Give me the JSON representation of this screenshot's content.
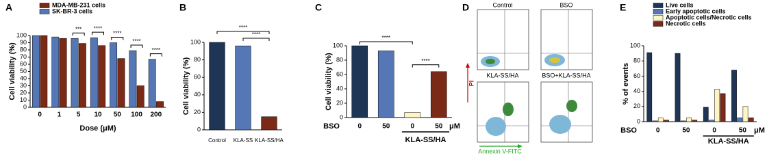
{
  "chart_data": [
    {
      "panel": "A",
      "type": "bar",
      "ylabel": "Cell viability (%)",
      "xlabel": "Dose (μM)",
      "categories": [
        "0",
        "1",
        "5",
        "10",
        "50",
        "100",
        "200"
      ],
      "series": [
        {
          "name": "MDA-MB-231 cells",
          "color": "#7b2a17",
          "values": [
            100,
            96,
            89,
            86,
            68,
            30,
            8
          ]
        },
        {
          "name": "SK-BR-3 cells",
          "color": "#5577b5",
          "values": [
            100,
            98,
            96,
            97,
            90,
            79,
            67
          ]
        }
      ],
      "ylim": [
        0,
        100
      ],
      "yticks": [
        0,
        10,
        20,
        30,
        40,
        50,
        60,
        70,
        80,
        90,
        100
      ],
      "significance": [
        null,
        null,
        "***",
        "****",
        "****",
        "****",
        "****"
      ]
    },
    {
      "panel": "B",
      "type": "bar",
      "ylabel": "Cell viability (%)",
      "categories": [
        "Control",
        "KLA-SS",
        "KLA-SS/HA"
      ],
      "values": [
        100,
        96,
        15
      ],
      "colors": [
        "#1f3555",
        "#5577b5",
        "#7b2a17"
      ],
      "ylim": [
        0,
        100
      ],
      "yticks": [
        0,
        20,
        40,
        60,
        80,
        100
      ],
      "comparisons": [
        "****",
        "****"
      ]
    },
    {
      "panel": "C",
      "type": "bar",
      "ylabel": "Cell viability (%)",
      "categories": [
        "0",
        "50",
        "0",
        "50"
      ],
      "values": [
        100,
        93,
        7,
        64
      ],
      "colors": [
        "#1f3555",
        "#5577b5",
        "#fff5c0",
        "#7b2a17"
      ],
      "group_label": "BSO",
      "unit": "μM",
      "bracket_label": "KLA-SS/HA",
      "ylim": [
        0,
        100
      ],
      "yticks": [
        0,
        20,
        40,
        60,
        80,
        100
      ],
      "comparisons": [
        "****",
        "****"
      ]
    },
    {
      "panel": "E",
      "type": "bar",
      "ylabel": "% of events",
      "categories": [
        "0",
        "50",
        "0",
        "50"
      ],
      "series": [
        {
          "name": "Live cells",
          "color": "#1f3555",
          "values": [
            91,
            90,
            19,
            68
          ]
        },
        {
          "name": "Early apoptotic cells",
          "color": "#5577b5",
          "values": [
            1,
            1,
            2,
            5
          ]
        },
        {
          "name": "Apoptotic cells/Necrotic cells",
          "color": "#fff5c0",
          "values": [
            5,
            5,
            43,
            20
          ]
        },
        {
          "name": "Necrotic cells",
          "color": "#7b2a17",
          "values": [
            2,
            2,
            37,
            5
          ]
        }
      ],
      "group_label": "BSO",
      "unit": "μM",
      "bracket_label": "KLA-SS/HA",
      "ylim": [
        0,
        100
      ],
      "yticks": [
        0,
        20,
        40,
        60,
        80,
        100
      ]
    }
  ],
  "flow": {
    "panel": "D",
    "plots": [
      "Control",
      "BSO",
      "KLA-SS/HA",
      "BSO+KLA-SS/HA"
    ],
    "ylabel": "PI",
    "xlabel": "Annexin V-FITC"
  }
}
